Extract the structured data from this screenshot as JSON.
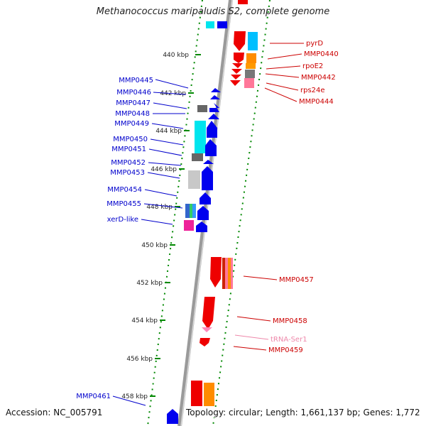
{
  "title": "Methanococcus maripaludis S2, complete genome",
  "footer": {
    "accession_label": "Accession:",
    "accession": "NC_005791",
    "topology_label": "Topology:",
    "topology": "circular",
    "length_label": "Length:",
    "length": "1,661,137 bp",
    "genes_label": "Genes:",
    "genes": "1,772"
  },
  "colors": {
    "minus_strand_label": "#0000cc",
    "plus_strand_label": "#cc0000",
    "trna_label": "#ee88aa",
    "backbone": "#9a9a9a",
    "tick": "#008800"
  },
  "scale": {
    "unit": "kbp",
    "labels": [
      "440 kbp",
      "442 kbp",
      "444 kbp",
      "446 kbp",
      "448 kbp",
      "450 kbp",
      "452 kbp",
      "454 kbp",
      "456 kbp",
      "458 kbp"
    ]
  },
  "genes_left": [
    "MMP0445",
    "MMP0446",
    "MMP0447",
    "MMP0448",
    "MMP0449",
    "MMP0450",
    "MMP0451",
    "MMP0452",
    "MMP0453",
    "MMP0454",
    "MMP0455",
    "xerD-like",
    "MMP0461"
  ],
  "genes_right": [
    "pyrD",
    "MMP0440",
    "rpoE2",
    "MMP0442",
    "rps24e",
    "MMP0444",
    "MMP0457",
    "MMP0458",
    "tRNA-Ser1",
    "MMP0459"
  ]
}
